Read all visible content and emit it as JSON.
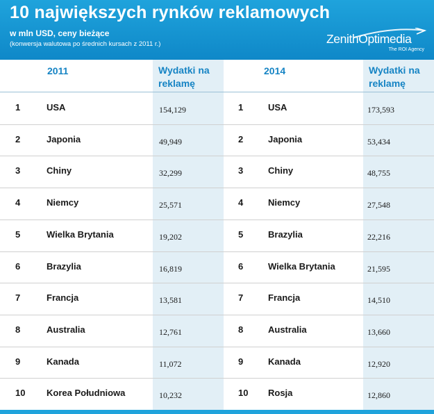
{
  "header": {
    "title": "10 największych rynków reklamowych",
    "subtitle": "w mln USD, ceny bieżące",
    "note": "(konwersja walutowa po średnich kursach z 2011 r.)",
    "logo_name": "ZenithOptimedia",
    "logo_tagline": "The ROI Agency"
  },
  "colors": {
    "accent": "#1fa3dc",
    "header_text": "#1684c4",
    "column_shade": "#e2eff6"
  },
  "chart_data": {
    "type": "table",
    "title": "10 największych rynków reklamowych",
    "subtitle": "w mln USD, ceny bieżące",
    "note": "(konwersja walutowa po średnich kursach z 2011 r.)",
    "tables": [
      {
        "year": "2011",
        "value_header": "Wydatki na reklamę",
        "rows": [
          {
            "rank": "1",
            "country": "USA",
            "value": "154,129"
          },
          {
            "rank": "2",
            "country": "Japonia",
            "value": "49,949"
          },
          {
            "rank": "3",
            "country": "Chiny",
            "value": "32,299"
          },
          {
            "rank": "4",
            "country": "Niemcy",
            "value": "25,571"
          },
          {
            "rank": "5",
            "country": "Wielka Brytania",
            "value": "19,202"
          },
          {
            "rank": "6",
            "country": "Brazylia",
            "value": "16,819"
          },
          {
            "rank": "7",
            "country": "Francja",
            "value": "13,581"
          },
          {
            "rank": "8",
            "country": "Australia",
            "value": "12,761"
          },
          {
            "rank": "9",
            "country": "Kanada",
            "value": "11,072"
          },
          {
            "rank": "10",
            "country": "Korea Południowa",
            "value": "10,232"
          }
        ]
      },
      {
        "year": "2014",
        "value_header": "Wydatki na reklamę",
        "rows": [
          {
            "rank": "1",
            "country": "USA",
            "value": "173,593"
          },
          {
            "rank": "2",
            "country": "Japonia",
            "value": "53,434"
          },
          {
            "rank": "3",
            "country": "Chiny",
            "value": "48,755"
          },
          {
            "rank": "4",
            "country": "Niemcy",
            "value": "27,548"
          },
          {
            "rank": "5",
            "country": "Brazylia",
            "value": "22,216"
          },
          {
            "rank": "6",
            "country": "Wielka Brytania",
            "value": "21,595"
          },
          {
            "rank": "7",
            "country": "Francja",
            "value": "14,510"
          },
          {
            "rank": "8",
            "country": "Australia",
            "value": "13,660"
          },
          {
            "rank": "9",
            "country": "Kanada",
            "value": "12,920"
          },
          {
            "rank": "10",
            "country": "Rosja",
            "value": "12,860"
          }
        ]
      }
    ]
  }
}
